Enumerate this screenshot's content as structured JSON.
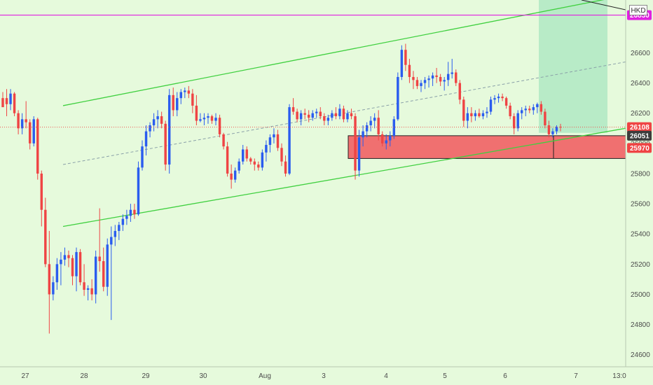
{
  "chart_data": {
    "type": "candlestick",
    "currency": "HKD",
    "y_range": [
      24520,
      26950
    ],
    "y_ticks": [
      24600,
      24800,
      25000,
      25200,
      25400,
      25600,
      25800,
      26000,
      26200,
      26400,
      26600
    ],
    "x_ticks": [
      "27",
      "28",
      "29",
      "30",
      "Aug",
      "3",
      "4",
      "5",
      "6",
      "7",
      "13:0"
    ],
    "price_badges": [
      {
        "value": "26850",
        "bg": "#e020e0",
        "color": "#ffffff"
      },
      {
        "value": "26108",
        "bg": "#ef4444",
        "color": "#ffffff"
      },
      {
        "value": "26051",
        "bg": "#3c3c3c",
        "color": "#ffffff"
      },
      {
        "value": "25970",
        "bg": "#ef4444",
        "color": "#ffffff"
      }
    ],
    "horizontal_line": {
      "value": 26850,
      "color": "#e020e0"
    },
    "current_price_line": {
      "value": 26108,
      "color": "#ef5350"
    },
    "ascending_channel": {
      "upper": {
        "from": 26250,
        "to": 26960
      },
      "lower": {
        "from": 25450,
        "to": 26100
      },
      "mid": {
        "from": 25860,
        "to": 26540
      }
    },
    "zones": [
      {
        "type": "stop",
        "top": 26051,
        "bottom": 25900,
        "color": "#f07070"
      },
      {
        "type": "target",
        "top": 26950,
        "bottom": 26070,
        "color": "#a8e6c0"
      }
    ],
    "colors": {
      "up": "#2a5cef",
      "down": "#ef4444",
      "channel": "#40d040",
      "mid": "#8aa0a8"
    },
    "candles": [
      [
        26300,
        26340,
        26260,
        26240
      ],
      [
        26300,
        26360,
        26180,
        26260
      ],
      [
        26260,
        26360,
        26220,
        26330
      ],
      [
        26330,
        26340,
        26180,
        26200
      ],
      [
        26200,
        26220,
        26060,
        26100
      ],
      [
        26100,
        26200,
        26060,
        26160
      ],
      [
        26160,
        26280,
        26100,
        26140
      ],
      [
        26140,
        26160,
        25960,
        26000
      ],
      [
        26000,
        26180,
        25980,
        26160
      ],
      [
        26160,
        26170,
        25760,
        25800
      ],
      [
        25800,
        25820,
        25450,
        25560
      ],
      [
        25560,
        25640,
        25180,
        25200
      ],
      [
        25200,
        25420,
        24740,
        25000
      ],
      [
        25000,
        25120,
        24960,
        25080
      ],
      [
        25080,
        25240,
        25030,
        25200
      ],
      [
        25200,
        25280,
        25060,
        25230
      ],
      [
        25230,
        25310,
        25190,
        25260
      ],
      [
        25260,
        25290,
        25180,
        25240
      ],
      [
        25240,
        25260,
        25060,
        25120
      ],
      [
        25120,
        25310,
        25020,
        25280
      ],
      [
        25280,
        25300,
        25060,
        25080
      ],
      [
        25080,
        25200,
        24990,
        25030
      ],
      [
        25030,
        25060,
        24960,
        25040
      ],
      [
        25040,
        25100,
        24960,
        25000
      ],
      [
        25000,
        25290,
        24940,
        25250
      ],
      [
        25250,
        25570,
        25150,
        25220
      ],
      [
        25220,
        25310,
        25020,
        25050
      ],
      [
        25050,
        25370,
        24990,
        25330
      ],
      [
        25330,
        25450,
        24830,
        25380
      ],
      [
        25380,
        25460,
        25320,
        25420
      ],
      [
        25420,
        25480,
        25360,
        25460
      ],
      [
        25460,
        25530,
        25420,
        25500
      ],
      [
        25500,
        25560,
        25460,
        25520
      ],
      [
        25520,
        25600,
        25480,
        25560
      ],
      [
        25560,
        25600,
        25500,
        25530
      ],
      [
        25530,
        25880,
        25520,
        25840
      ],
      [
        25840,
        26020,
        25820,
        25980
      ],
      [
        25980,
        26120,
        25920,
        26080
      ],
      [
        26080,
        26140,
        26040,
        26120
      ],
      [
        26120,
        26200,
        26080,
        26160
      ],
      [
        26160,
        26220,
        26100,
        26180
      ],
      [
        26180,
        26210,
        26100,
        26130
      ],
      [
        26130,
        26150,
        25820,
        25860
      ],
      [
        25860,
        26360,
        25800,
        26320
      ],
      [
        26320,
        26370,
        26180,
        26220
      ],
      [
        26220,
        26340,
        26180,
        26300
      ],
      [
        26300,
        26360,
        26260,
        26340
      ],
      [
        26340,
        26370,
        26300,
        26350
      ],
      [
        26350,
        26380,
        26300,
        26330
      ],
      [
        26330,
        26360,
        26200,
        26250
      ],
      [
        26250,
        26320,
        26120,
        26150
      ],
      [
        26150,
        26200,
        26140,
        26160
      ],
      [
        26160,
        26200,
        26120,
        26170
      ],
      [
        26170,
        26200,
        26130,
        26180
      ],
      [
        26180,
        26190,
        26130,
        26150
      ],
      [
        26150,
        26200,
        26120,
        26170
      ],
      [
        26170,
        26190,
        26040,
        26060
      ],
      [
        26060,
        26070,
        25960,
        25980
      ],
      [
        25980,
        26010,
        25780,
        25800
      ],
      [
        25800,
        25860,
        25700,
        25760
      ],
      [
        25760,
        25840,
        25740,
        25820
      ],
      [
        25820,
        25900,
        25800,
        25880
      ],
      [
        25880,
        25990,
        25860,
        25960
      ],
      [
        25960,
        25980,
        25880,
        25900
      ],
      [
        25900,
        25910,
        25860,
        25880
      ],
      [
        25880,
        25900,
        25820,
        25860
      ],
      [
        25860,
        25880,
        25820,
        25840
      ],
      [
        25840,
        25960,
        25820,
        25940
      ],
      [
        25940,
        26020,
        25880,
        25990
      ],
      [
        25990,
        26060,
        25940,
        26040
      ],
      [
        26040,
        26100,
        26000,
        26060
      ],
      [
        26060,
        26090,
        25950,
        25970
      ],
      [
        25970,
        26000,
        25850,
        25880
      ],
      [
        25880,
        25920,
        25780,
        25800
      ],
      [
        25800,
        26260,
        25790,
        26240
      ],
      [
        26240,
        26300,
        26190,
        26210
      ],
      [
        26210,
        26230,
        26140,
        26160
      ],
      [
        26160,
        26220,
        26120,
        26200
      ],
      [
        26200,
        26230,
        26160,
        26190
      ],
      [
        26190,
        26220,
        26140,
        26170
      ],
      [
        26170,
        26220,
        26150,
        26200
      ],
      [
        26200,
        26230,
        26170,
        26210
      ],
      [
        26210,
        26240,
        26160,
        26180
      ],
      [
        26180,
        26200,
        26120,
        26150
      ],
      [
        26150,
        26190,
        26120,
        26170
      ],
      [
        26170,
        26220,
        26150,
        26200
      ],
      [
        26200,
        26240,
        26160,
        26180
      ],
      [
        26180,
        26260,
        26160,
        26230
      ],
      [
        26230,
        26250,
        26140,
        26160
      ],
      [
        26160,
        26220,
        26140,
        26200
      ],
      [
        26200,
        26230,
        26160,
        26180
      ],
      [
        26180,
        26200,
        25760,
        25820
      ],
      [
        25820,
        26090,
        25780,
        26040
      ],
      [
        26040,
        26120,
        25980,
        26080
      ],
      [
        26080,
        26140,
        26040,
        26120
      ],
      [
        26120,
        26180,
        26080,
        26150
      ],
      [
        26150,
        26200,
        26100,
        26170
      ],
      [
        26170,
        26220,
        26020,
        26060
      ],
      [
        26060,
        26080,
        25980,
        26000
      ],
      [
        26000,
        26060,
        25960,
        26020
      ],
      [
        26020,
        26080,
        25980,
        26050
      ],
      [
        26050,
        26180,
        26030,
        26160
      ],
      [
        26160,
        26470,
        26150,
        26440
      ],
      [
        26440,
        26650,
        26420,
        26620
      ],
      [
        26620,
        26660,
        26480,
        26520
      ],
      [
        26520,
        26560,
        26400,
        26440
      ],
      [
        26440,
        26480,
        26360,
        26420
      ],
      [
        26420,
        26440,
        26360,
        26380
      ],
      [
        26380,
        26420,
        26340,
        26400
      ],
      [
        26400,
        26440,
        26360,
        26420
      ],
      [
        26420,
        26450,
        26370,
        26430
      ],
      [
        26430,
        26470,
        26380,
        26450
      ],
      [
        26450,
        26500,
        26400,
        26440
      ],
      [
        26440,
        26460,
        26380,
        26410
      ],
      [
        26410,
        26440,
        26350,
        26420
      ],
      [
        26420,
        26540,
        26380,
        26460
      ],
      [
        26460,
        26560,
        26430,
        26470
      ],
      [
        26470,
        26490,
        26380,
        26400
      ],
      [
        26400,
        26420,
        26260,
        26290
      ],
      [
        26290,
        26310,
        26110,
        26150
      ],
      [
        26150,
        26240,
        26100,
        26200
      ],
      [
        26200,
        26240,
        26140,
        26180
      ],
      [
        26180,
        26220,
        26150,
        26200
      ],
      [
        26200,
        26230,
        26170,
        26180
      ],
      [
        26180,
        26220,
        26160,
        26200
      ],
      [
        26200,
        26240,
        26170,
        26210
      ],
      [
        26210,
        26310,
        26190,
        26290
      ],
      [
        26290,
        26320,
        26260,
        26300
      ],
      [
        26300,
        26330,
        26270,
        26310
      ],
      [
        26310,
        26330,
        26280,
        26300
      ],
      [
        26300,
        26310,
        26230,
        26250
      ],
      [
        26250,
        26270,
        26160,
        26180
      ],
      [
        26180,
        26200,
        26060,
        26100
      ],
      [
        26100,
        26220,
        26080,
        26200
      ],
      [
        26200,
        26240,
        26160,
        26220
      ],
      [
        26220,
        26250,
        26180,
        26230
      ],
      [
        26230,
        26250,
        26200,
        26220
      ],
      [
        26220,
        26260,
        26190,
        26240
      ],
      [
        26240,
        26270,
        26200,
        26260
      ],
      [
        26260,
        26280,
        26190,
        26210
      ],
      [
        26210,
        26230,
        26100,
        26120
      ],
      [
        26120,
        26150,
        26040,
        26060
      ],
      [
        26060,
        26100,
        26040,
        26080
      ],
      [
        26080,
        26120,
        26060,
        26110
      ],
      [
        26110,
        26130,
        26080,
        26108
      ]
    ]
  }
}
